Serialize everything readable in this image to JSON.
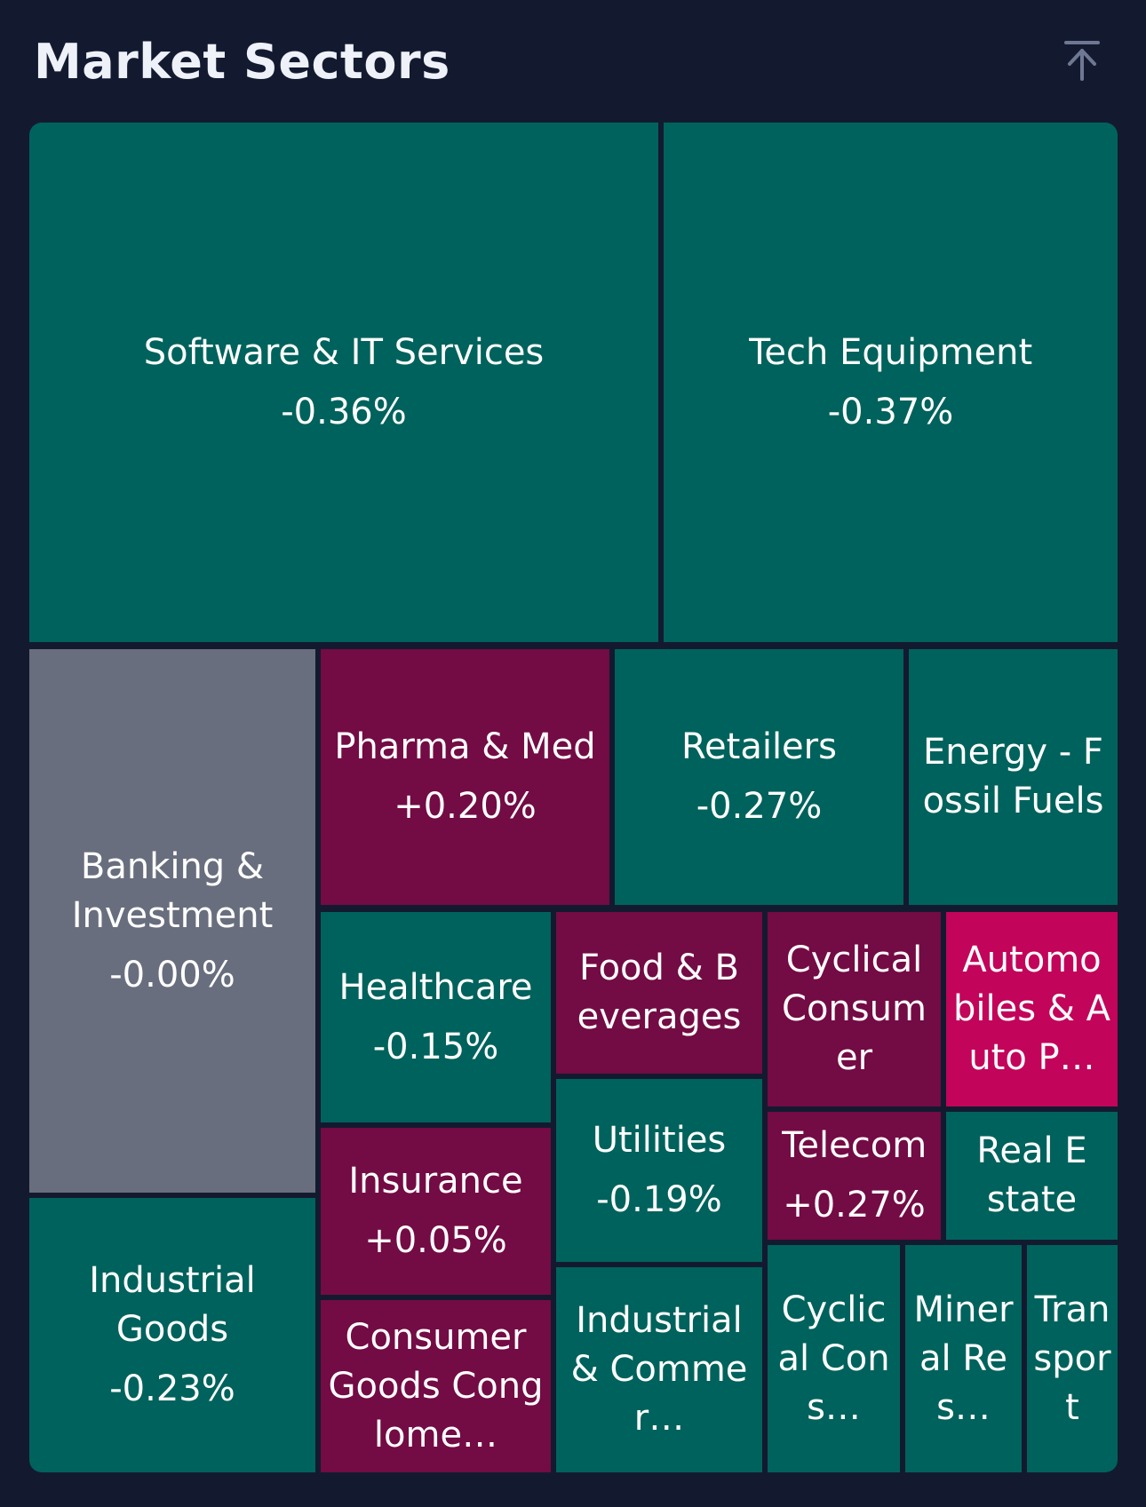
{
  "header": {
    "title": "Market Sectors",
    "collapse_icon": "collapse-up-icon"
  },
  "colors": {
    "background": "#131a30",
    "negative": "#00625c",
    "positive": "#730b44",
    "strong_positive": "#c2045a",
    "neutral": "#686e7d"
  },
  "chart_data": {
    "type": "treemap",
    "title": "Market Sectors",
    "tiles": [
      {
        "label": "Software & IT Services",
        "change": "-0.36%",
        "value": -0.36,
        "color": "#00625c"
      },
      {
        "label": "Tech Equipment",
        "change": "-0.37%",
        "value": -0.37,
        "color": "#00625c"
      },
      {
        "label": "Banking & Investment",
        "change": "-0.00%",
        "value": -0.0,
        "color": "#686e7d"
      },
      {
        "label": "Pharma & Med",
        "change": "+0.20%",
        "value": 0.2,
        "color": "#730b44"
      },
      {
        "label": "Retailers",
        "change": "-0.27%",
        "value": -0.27,
        "color": "#00625c"
      },
      {
        "label": "Energy - Fossil Fuels",
        "change": "",
        "value": null,
        "color": "#00625c"
      },
      {
        "label": "Healthcare",
        "change": "-0.15%",
        "value": -0.15,
        "color": "#00625c"
      },
      {
        "label": "Food & Beverages",
        "change": "",
        "value": null,
        "color": "#730b44"
      },
      {
        "label": "Cyclical Consumer",
        "change": "",
        "value": null,
        "color": "#730b44"
      },
      {
        "label": "Automobiles & Auto P…",
        "change": "",
        "value": null,
        "color": "#c2045a"
      },
      {
        "label": "Industrial Goods",
        "change": "-0.23%",
        "value": -0.23,
        "color": "#00625c"
      },
      {
        "label": "Insurance",
        "change": "+0.05%",
        "value": 0.05,
        "color": "#730b44"
      },
      {
        "label": "Utilities",
        "change": "-0.19%",
        "value": -0.19,
        "color": "#00625c"
      },
      {
        "label": "Telecom",
        "change": "+0.27%",
        "value": 0.27,
        "color": "#730b44"
      },
      {
        "label": "Real Estate",
        "change": "",
        "value": null,
        "color": "#00625c"
      },
      {
        "label": "Consumer Goods Conglome…",
        "change": "",
        "value": null,
        "color": "#730b44"
      },
      {
        "label": "Industrial & Commer…",
        "change": "",
        "value": null,
        "color": "#00625c"
      },
      {
        "label": "Cyclical Cons…",
        "change": "",
        "value": null,
        "color": "#00625c"
      },
      {
        "label": "Mineral Res…",
        "change": "",
        "value": null,
        "color": "#00625c"
      },
      {
        "label": "Transport",
        "change": "",
        "value": null,
        "color": "#00625c"
      }
    ]
  }
}
